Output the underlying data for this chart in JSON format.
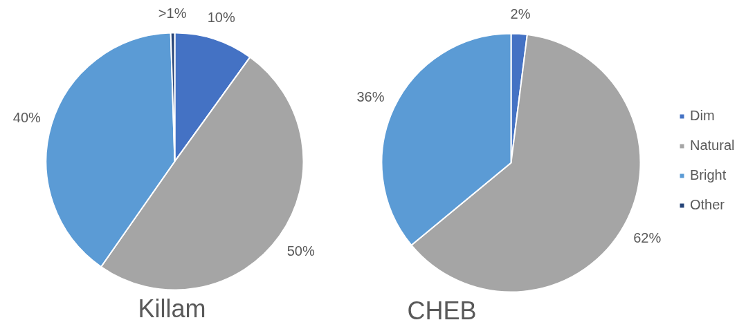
{
  "chart_data": [
    {
      "type": "pie",
      "title": "Killam",
      "categories": [
        null,
        null,
        null,
        null
      ],
      "values": [
        10,
        50,
        40,
        0.5
      ],
      "colors": [
        "#4472c4",
        "#a5a5a5",
        "#5b9bd5",
        "#264478"
      ],
      "value_labels": [
        "10%",
        "50%",
        "40%",
        ">1%"
      ],
      "legend": false
    },
    {
      "type": "pie",
      "title": "CHEB",
      "categories": [
        "Dim",
        "Natural",
        "Bright",
        "Other"
      ],
      "values": [
        2,
        62,
        36,
        null
      ],
      "colors": [
        "#4472c4",
        "#a5a5a5",
        "#5b9bd5",
        "#264478"
      ],
      "value_labels": [
        "2%",
        "62%",
        "36%",
        null
      ],
      "legend": "right"
    }
  ]
}
